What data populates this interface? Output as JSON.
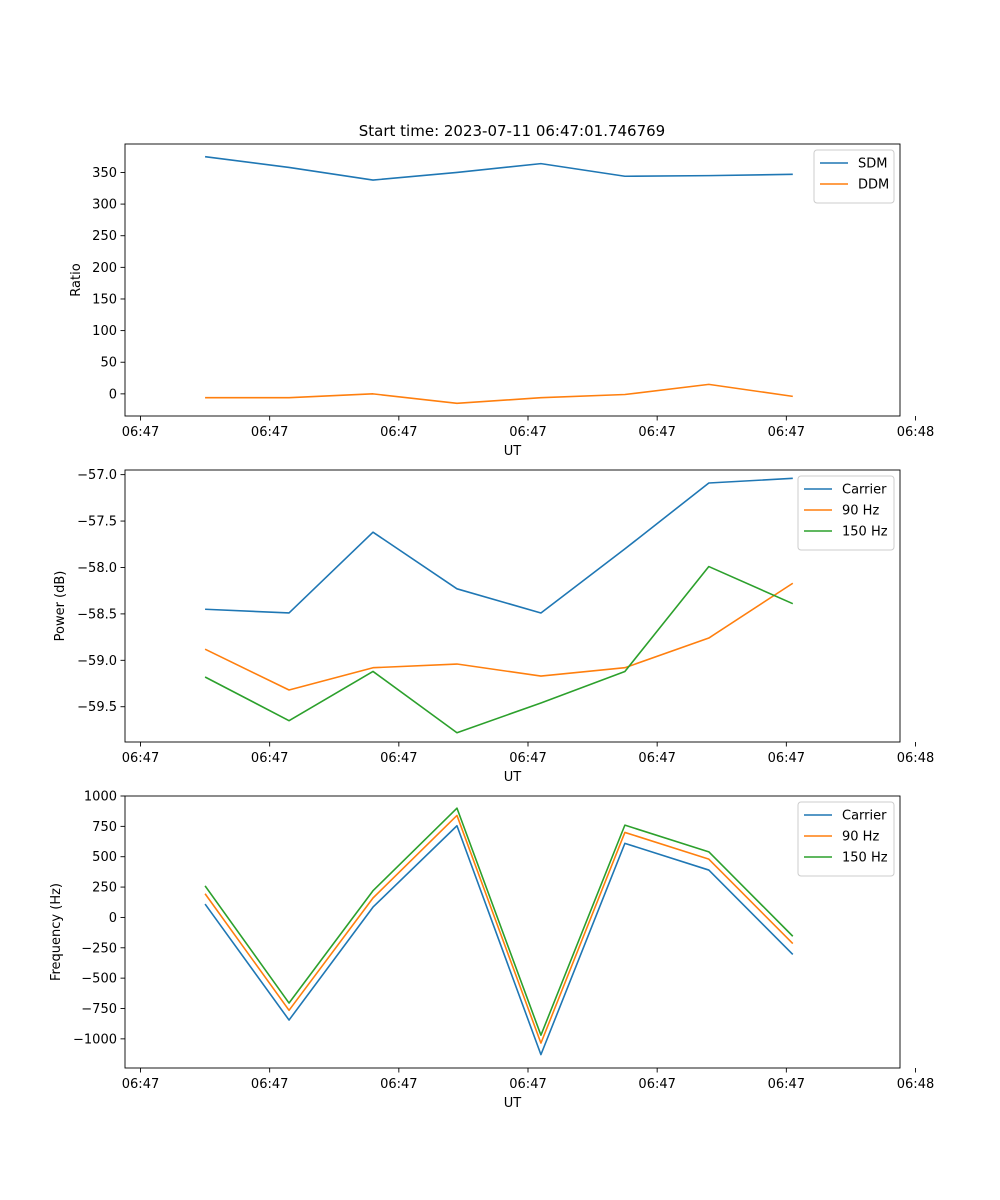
{
  "figure": {
    "title": "Start time: 2023-07-11 06:47:01.746769"
  },
  "chart_data": [
    {
      "type": "line",
      "ylabel": "Ratio",
      "xlabel": "UT",
      "x_tick_labels": [
        "06:47",
        "06:47",
        "06:47",
        "06:47",
        "06:47",
        "06:47",
        "06:48"
      ],
      "x_ticks": [
        0,
        0.5,
        1,
        1.5,
        2,
        2.5,
        3
      ],
      "xlim": [
        -0.06,
        2.94
      ],
      "ylim": [
        -35,
        395
      ],
      "y_ticks": [
        0,
        50,
        100,
        150,
        200,
        250,
        300,
        350
      ],
      "y_tick_labels": [
        "0",
        "50",
        "100",
        "150",
        "200",
        "250",
        "300",
        "350"
      ],
      "legend_location": "top-right",
      "x": [
        0.25,
        0.575,
        0.9,
        1.225,
        1.55,
        1.875,
        2.2,
        2.525
      ],
      "series": [
        {
          "name": "SDM",
          "color": "#1f77b4",
          "values": [
            375,
            358,
            338,
            350,
            364,
            344,
            345,
            347
          ]
        },
        {
          "name": "DDM",
          "color": "#ff7f0e",
          "values": [
            -6,
            -6,
            0,
            -15,
            -6,
            -1,
            15,
            -4
          ]
        }
      ]
    },
    {
      "type": "line",
      "ylabel": "Power (dB)",
      "xlabel": "UT",
      "x_tick_labels": [
        "06:47",
        "06:47",
        "06:47",
        "06:47",
        "06:47",
        "06:47",
        "06:48"
      ],
      "x_ticks": [
        0,
        0.5,
        1,
        1.5,
        2,
        2.5,
        3
      ],
      "xlim": [
        -0.06,
        2.94
      ],
      "ylim": [
        -59.88,
        -56.95
      ],
      "y_ticks": [
        -59.5,
        -59.0,
        -58.5,
        -58.0,
        -57.5,
        -57.0
      ],
      "y_tick_labels": [
        "−59.5",
        "−59.0",
        "−58.5",
        "−58.0",
        "−57.5",
        "−57.0"
      ],
      "legend_location": "top-right",
      "x": [
        0.25,
        0.575,
        0.9,
        1.225,
        1.55,
        1.875,
        2.2,
        2.525
      ],
      "series": [
        {
          "name": "Carrier",
          "color": "#1f77b4",
          "values": [
            -58.45,
            -58.49,
            -57.62,
            -58.23,
            -58.49,
            -57.8,
            -57.09,
            -57.04
          ]
        },
        {
          "name": "90 Hz",
          "color": "#ff7f0e",
          "values": [
            -58.88,
            -59.32,
            -59.08,
            -59.04,
            -59.17,
            -59.08,
            -58.76,
            -58.17
          ]
        },
        {
          "name": "150 Hz",
          "color": "#2ca02c",
          "values": [
            -59.18,
            -59.65,
            -59.12,
            -59.78,
            -59.46,
            -59.12,
            -57.99,
            -58.39
          ]
        }
      ]
    },
    {
      "type": "line",
      "ylabel": "Frequency (Hz)",
      "xlabel": "UT",
      "x_tick_labels": [
        "06:47",
        "06:47",
        "06:47",
        "06:47",
        "06:47",
        "06:47",
        "06:48"
      ],
      "x_ticks": [
        0,
        0.5,
        1,
        1.5,
        2,
        2.5,
        3
      ],
      "xlim": [
        -0.06,
        2.94
      ],
      "ylim": [
        -1240,
        1000
      ],
      "y_ticks": [
        -1000,
        -750,
        -500,
        -250,
        0,
        250,
        500,
        750,
        1000
      ],
      "y_tick_labels": [
        "−1000",
        "−750",
        "−500",
        "−250",
        "0",
        "250",
        "500",
        "750",
        "1000"
      ],
      "legend_location": "top-right",
      "x": [
        0.25,
        0.575,
        0.9,
        1.225,
        1.55,
        1.875,
        2.2,
        2.525
      ],
      "series": [
        {
          "name": "Carrier",
          "color": "#1f77b4",
          "values": [
            110,
            -845,
            85,
            755,
            -1130,
            610,
            390,
            -305
          ]
        },
        {
          "name": "90 Hz",
          "color": "#ff7f0e",
          "values": [
            195,
            -765,
            160,
            840,
            -1035,
            700,
            480,
            -215
          ]
        },
        {
          "name": "150 Hz",
          "color": "#2ca02c",
          "values": [
            260,
            -705,
            220,
            900,
            -970,
            760,
            540,
            -155
          ]
        }
      ]
    }
  ]
}
